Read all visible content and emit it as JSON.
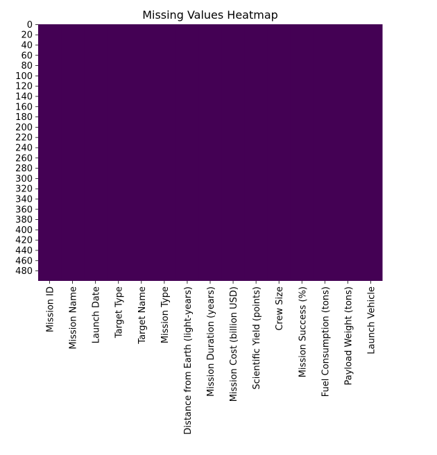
{
  "chart_data": {
    "type": "heatmap",
    "title": "Missing Values Heatmap",
    "xlabel": "",
    "ylabel": "",
    "columns": [
      "Mission ID",
      "Mission Name",
      "Launch Date",
      "Target Type",
      "Target Name",
      "Mission Type",
      "Distance from Earth (light-years)",
      "Mission Duration (years)",
      "Mission Cost (billion USD)",
      "Scientific Yield (points)",
      "Crew Size",
      "Mission Success (%)",
      "Fuel Consumption (tons)",
      "Payload Weight (tons)",
      "Launch Vehicle"
    ],
    "rows": 500,
    "row_tick_labels": [
      "0",
      "20",
      "40",
      "60",
      "80",
      "100",
      "120",
      "140",
      "160",
      "180",
      "200",
      "220",
      "240",
      "260",
      "280",
      "300",
      "320",
      "340",
      "360",
      "380",
      "400",
      "420",
      "440",
      "460",
      "480"
    ],
    "row_tick_values": [
      0,
      20,
      40,
      60,
      80,
      100,
      120,
      140,
      160,
      180,
      200,
      220,
      240,
      260,
      280,
      300,
      320,
      340,
      360,
      380,
      400,
      420,
      440,
      460,
      480
    ],
    "missing_counts": [
      0,
      0,
      0,
      0,
      0,
      0,
      0,
      0,
      0,
      0,
      0,
      0,
      0,
      0,
      0
    ],
    "colors": {
      "present": "#440154",
      "missing": "#fde725"
    },
    "colorbar": false,
    "grid": false
  }
}
